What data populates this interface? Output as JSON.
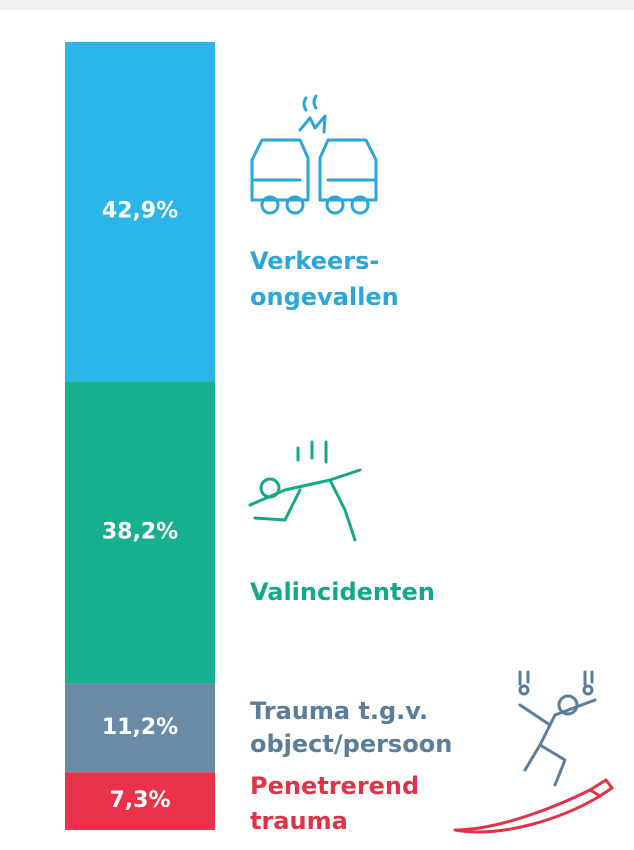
{
  "chart_data": {
    "type": "bar",
    "stacked": true,
    "series": [
      {
        "name": [
          "Verkeers-",
          "ongevallen"
        ],
        "color": "#2bb5e8",
        "label_color": "#2aa6d9",
        "values": [
          42.9
        ],
        "value_labels": [
          "42,9%"
        ]
      },
      {
        "name": [
          "Valincidenten"
        ],
        "color": "#17b08f",
        "label_color": "#14a888",
        "values": [
          38.2
        ],
        "value_labels": [
          "38,2%"
        ]
      },
      {
        "name": [
          "Trauma t.g.v.",
          "object/persoon"
        ],
        "color": "#6a8aa6",
        "label_color": "#5b7d99",
        "values": [
          11.2
        ],
        "value_labels": [
          "11,2%"
        ]
      },
      {
        "name": [
          "Penetrerend",
          "trauma"
        ],
        "color": "#e8334a",
        "label_color": "#e03347",
        "values": [
          7.3
        ],
        "value_labels": [
          "7,3%"
        ]
      }
    ]
  }
}
